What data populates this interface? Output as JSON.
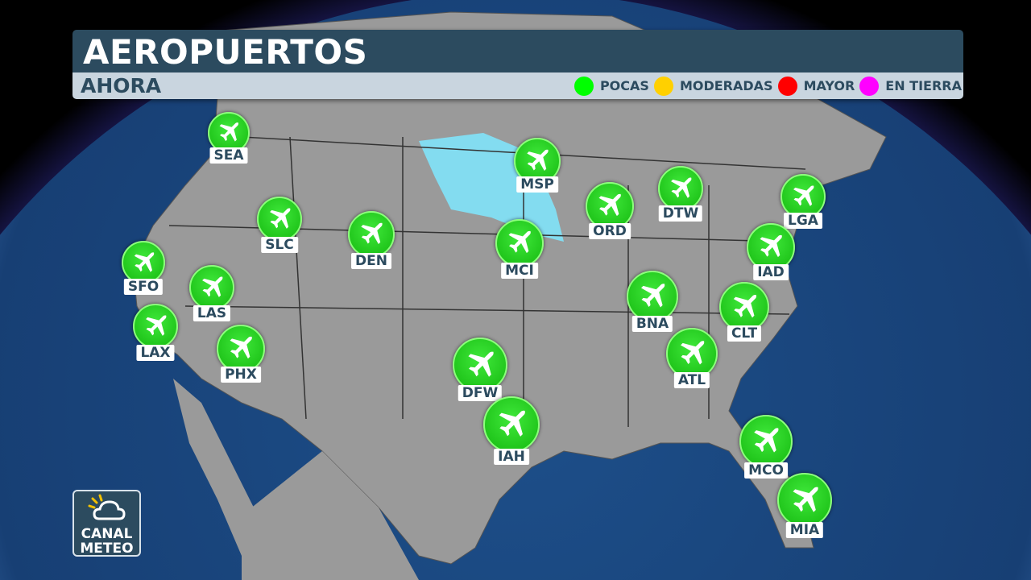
{
  "header": {
    "title": "AEROPUERTOS",
    "subtitle": "AHORA"
  },
  "legend": [
    {
      "label": "POCAS",
      "color": "#00ff00"
    },
    {
      "label": "MODERADAS",
      "color": "#ffd000"
    },
    {
      "label": "MAYOR",
      "color": "#ff0000"
    },
    {
      "label": "EN TIERRA",
      "color": "#ff00ff"
    }
  ],
  "airports": [
    {
      "code": "SEA",
      "status": "POCAS"
    },
    {
      "code": "SFO",
      "status": "POCAS"
    },
    {
      "code": "LAX",
      "status": "POCAS"
    },
    {
      "code": "LAS",
      "status": "POCAS"
    },
    {
      "code": "PHX",
      "status": "POCAS"
    },
    {
      "code": "SLC",
      "status": "POCAS"
    },
    {
      "code": "DEN",
      "status": "POCAS"
    },
    {
      "code": "MSP",
      "status": "POCAS"
    },
    {
      "code": "MCI",
      "status": "POCAS"
    },
    {
      "code": "ORD",
      "status": "POCAS"
    },
    {
      "code": "DTW",
      "status": "POCAS"
    },
    {
      "code": "LGA",
      "status": "POCAS"
    },
    {
      "code": "IAD",
      "status": "POCAS"
    },
    {
      "code": "CLT",
      "status": "POCAS"
    },
    {
      "code": "BNA",
      "status": "POCAS"
    },
    {
      "code": "ATL",
      "status": "POCAS"
    },
    {
      "code": "DFW",
      "status": "POCAS"
    },
    {
      "code": "IAH",
      "status": "POCAS"
    },
    {
      "code": "MCO",
      "status": "POCAS"
    },
    {
      "code": "MIA",
      "status": "POCAS"
    }
  ],
  "logo": {
    "line1": "CANAL",
    "line2": "METEO"
  }
}
